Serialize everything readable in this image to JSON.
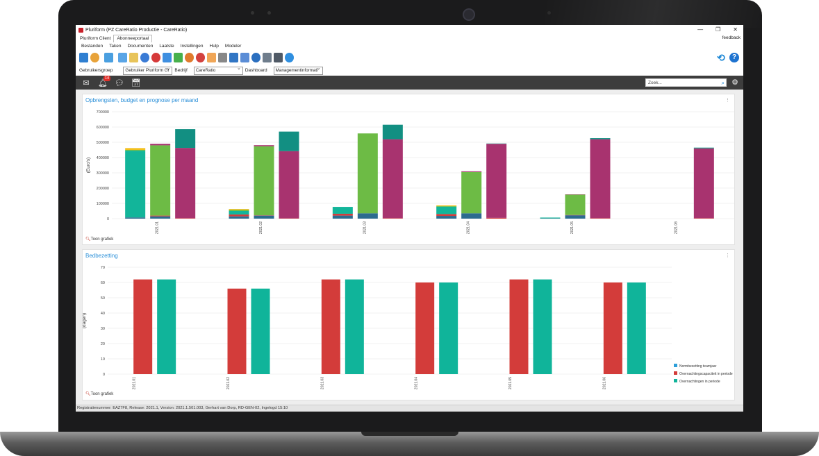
{
  "window": {
    "title": "Pluriform  (PZ CareRatio Productie - CareRatio)",
    "minimize": "—",
    "restore": "❐",
    "close": "✕"
  },
  "tabs": [
    {
      "label": "Pluriform Client"
    },
    {
      "label": "Abonneeportaal"
    }
  ],
  "feedback": "feedback",
  "menu": [
    "Bestanden",
    "Taken",
    "Documenten",
    "Laatste",
    "Instellingen",
    "Hulp",
    "Modeler"
  ],
  "toolbar": {
    "icons": [
      "phone-icon",
      "users-icon",
      "table-icon",
      "book-icon",
      "folder-info-icon",
      "rings-icon",
      "lifebuoy-icon",
      "box-icon",
      "plus-icon",
      "palette-icon",
      "molecule-icon",
      "person-icon",
      "stamp-icon",
      "server-icon",
      "lock-icon",
      "stethoscope-icon",
      "list-icon",
      "grid-icon",
      "globe-icon"
    ]
  },
  "filters": {
    "gebruikersgroep_label": "Gebruikersgroep",
    "gebruikersgroep_value": "Gebruiker Pluriform Gr",
    "bedrijf_label": "Bedrijf",
    "bedrijf_value": "CareRatio",
    "dashboard_label": "Dashboard",
    "dashboard_value": "Managementinformati"
  },
  "notifications": {
    "count": "14"
  },
  "search": {
    "placeholder": "Zoek..."
  },
  "chart_data": [
    {
      "type": "bar",
      "title": "Opbrengsten, budget en prognose per maand",
      "ylabel": "(Euro's)",
      "ylim": [
        0,
        700000
      ],
      "yticks": [
        "0",
        "100000",
        "200000",
        "300000",
        "400000",
        "500000",
        "600000",
        "700000"
      ],
      "categories": [
        "2021.01",
        "2021.02",
        "2021.03",
        "2021.04",
        "2021.05",
        "2021.06"
      ],
      "stacked": true,
      "groups": [
        {
          "stack": "A",
          "segments": [
            {
              "color": "#2c6b8f",
              "values": [
                8000,
                15000,
                20000,
                18000,
                2000,
                0
              ]
            },
            {
              "color": "#d43c3c",
              "values": [
                0,
                12000,
                12000,
                12000,
                0,
                0
              ]
            },
            {
              "color": "#12b59a",
              "values": [
                437000,
                23000,
                45000,
                48000,
                5000,
                0
              ]
            },
            {
              "color": "#6dbb45",
              "values": [
                5000,
                7000,
                0,
                4000,
                0,
                0
              ]
            },
            {
              "color": "#f2c01e",
              "values": [
                12000,
                6000,
                0,
                5000,
                0,
                0
              ]
            }
          ]
        },
        {
          "stack": "B",
          "segments": [
            {
              "color": "#2c6b8f",
              "values": [
                15000,
                20000,
                35000,
                35000,
                22000,
                0
              ]
            },
            {
              "color": "#d43c3c",
              "values": [
                5000,
                2000,
                0,
                0,
                2000,
                0
              ]
            },
            {
              "color": "#6dbb45",
              "values": [
                460000,
                452000,
                523000,
                270000,
                133000,
                0
              ]
            },
            {
              "color": "#a8336f",
              "values": [
                10000,
                7000,
                0,
                5000,
                2000,
                0
              ]
            }
          ]
        },
        {
          "stack": "C",
          "segments": [
            {
              "color": "#d43c3c",
              "values": [
                3000,
                2000,
                3000,
                5000,
                3000,
                3000
              ]
            },
            {
              "color": "#a8336f",
              "values": [
                460000,
                440000,
                517000,
                485000,
                517000,
                457000
              ]
            },
            {
              "color": "#128f82",
              "values": [
                123000,
                128000,
                95000,
                2000,
                7000,
                5000
              ]
            }
          ]
        }
      ],
      "link": "Toon grafiek"
    },
    {
      "type": "bar",
      "title": "Bedbezetting",
      "ylabel": "(dagen)",
      "ylim": [
        0,
        70
      ],
      "yticks": [
        "0",
        "10",
        "20",
        "30",
        "40",
        "50",
        "60",
        "70"
      ],
      "categories": [
        "2021.01",
        "2021.02",
        "2021.03",
        "2021.04",
        "2021.05",
        "2021.06"
      ],
      "series": [
        {
          "name": "Normbezetting teamjaar",
          "color": "#2d9fd9",
          "values": [
            0,
            0,
            0,
            0,
            0,
            0
          ]
        },
        {
          "name": "Overnachtingscapaciteit in periode",
          "color": "#d33c3a",
          "values": [
            62,
            56,
            62,
            60,
            62,
            60
          ]
        },
        {
          "name": "Overnachtingen in periode",
          "color": "#10b49a",
          "values": [
            62,
            56,
            62,
            60,
            62,
            60
          ]
        }
      ],
      "legend": "bottom-right",
      "link": "Toon grafiek"
    }
  ],
  "statusbar": "Registratienummer: EAZ7F8, Release: 2021.1, Version: 2021.1.501.003, Gerhart van Dorp, RD-GEN-02, Ingelogd 15:10"
}
